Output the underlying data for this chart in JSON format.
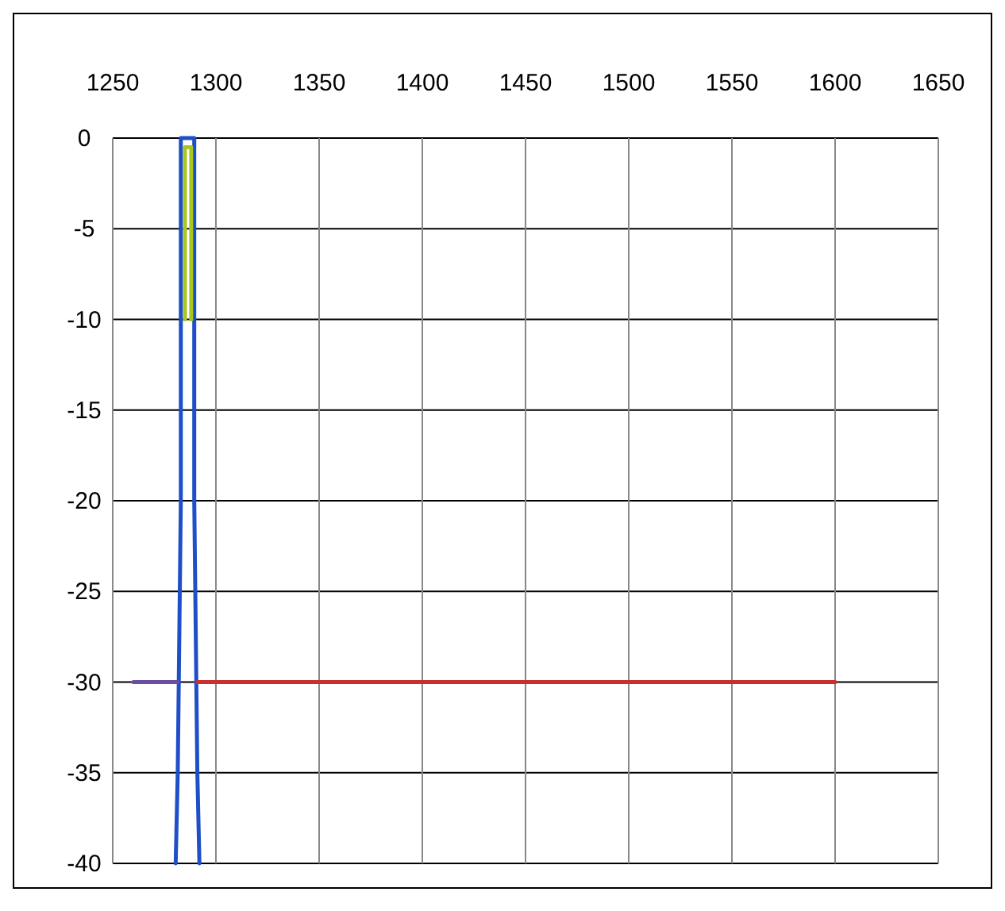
{
  "chart_data": {
    "type": "line",
    "xlim": [
      1250,
      1650
    ],
    "xticks": [
      1250,
      1300,
      1350,
      1400,
      1450,
      1500,
      1550,
      1600,
      1650
    ],
    "ylim": [
      -40,
      0
    ],
    "yticks": [
      0,
      -5,
      -10,
      -15,
      -20,
      -25,
      -30,
      -35,
      -40
    ],
    "grid": true,
    "marker": "none",
    "series": [
      {
        "color": "#1f4fc8",
        "x": [
          1280.5,
          1281.5,
          1282,
          1283,
          1283,
          1289.5,
          1289.5,
          1290.5,
          1291,
          1292
        ],
        "values": [
          -40,
          -35,
          -30,
          -20,
          0,
          0,
          -20,
          -30,
          -35,
          -40
        ]
      },
      {
        "color": "#a8c820",
        "x": [
          1285,
          1285,
          1288,
          1288
        ],
        "values": [
          -10,
          -0.5,
          -0.5,
          -10
        ]
      },
      {
        "color": "#6a4fa0",
        "x": [
          1260,
          1281.5
        ],
        "values": [
          -30,
          -30
        ]
      },
      {
        "color": "#c83030",
        "x": [
          1291,
          1600
        ],
        "values": [
          -30,
          -30
        ]
      }
    ]
  }
}
